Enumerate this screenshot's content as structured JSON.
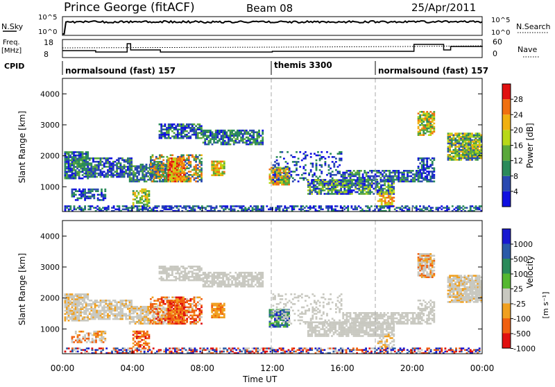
{
  "header": {
    "title": "Prince George (fitACF)",
    "beam": "Beam 08",
    "date": "25/Apr/2011"
  },
  "top_panel": {
    "left_label": "N.Sky",
    "left_ticks": [
      "10^5",
      "10^0"
    ],
    "right_ticks": [
      "10^5",
      "10^0"
    ],
    "right_label": "N.Search"
  },
  "freq_panel": {
    "left_label_1": "Freq.",
    "left_label_2": "[MHz]",
    "left_ticks": [
      "18",
      "8"
    ],
    "right_ticks": [
      "60",
      "0"
    ],
    "right_label": "Nave"
  },
  "cpid": {
    "label": "CPID",
    "segments": [
      {
        "name": "normalsound (fast) 157",
        "start_hour": 0
      },
      {
        "name": "themis 3300",
        "start_hour": 12
      },
      {
        "name": "normalsound (fast) 157",
        "start_hour": 18
      }
    ]
  },
  "chart_data": [
    {
      "type": "heatmap",
      "title": "",
      "ylabel": "Slant Range [km]",
      "xlabel": "",
      "x_range_hours": [
        0,
        24
      ],
      "ylim": [
        200,
        4500
      ],
      "y_ticks": [
        "1000",
        "2000",
        "3000",
        "4000"
      ],
      "colorbar_label": "Power [dB]",
      "colorbar_ticks": [
        "4",
        "8",
        "12",
        "16",
        "20",
        "24",
        "28"
      ],
      "colorbar_colors": [
        "#1010e0",
        "#2848b0",
        "#2a8a5a",
        "#5aa83a",
        "#b8d818",
        "#f0b010",
        "#f07010",
        "#e01010"
      ]
    },
    {
      "type": "heatmap",
      "title": "",
      "ylabel": "Slant Range [km]",
      "xlabel": "Time UT",
      "x_range_hours": [
        0,
        24
      ],
      "ylim": [
        200,
        4500
      ],
      "y_ticks": [
        "1000",
        "2000",
        "3000",
        "4000"
      ],
      "x_ticks": [
        "00:00",
        "04:00",
        "08:00",
        "12:00",
        "16:00",
        "20:00",
        "00:00"
      ],
      "colorbar_label": "Velocity",
      "colorbar_units": "[m s⁻¹]",
      "colorbar_ticks": [
        "1000",
        "500",
        "100",
        "25",
        "-25",
        "-100",
        "-500",
        "-1000"
      ],
      "colorbar_colors": [
        "#1818d0",
        "#2a5aa8",
        "#2a8a5a",
        "#55b830",
        "#c8c8c0",
        "#f0a020",
        "#f06010",
        "#e01010"
      ]
    }
  ]
}
